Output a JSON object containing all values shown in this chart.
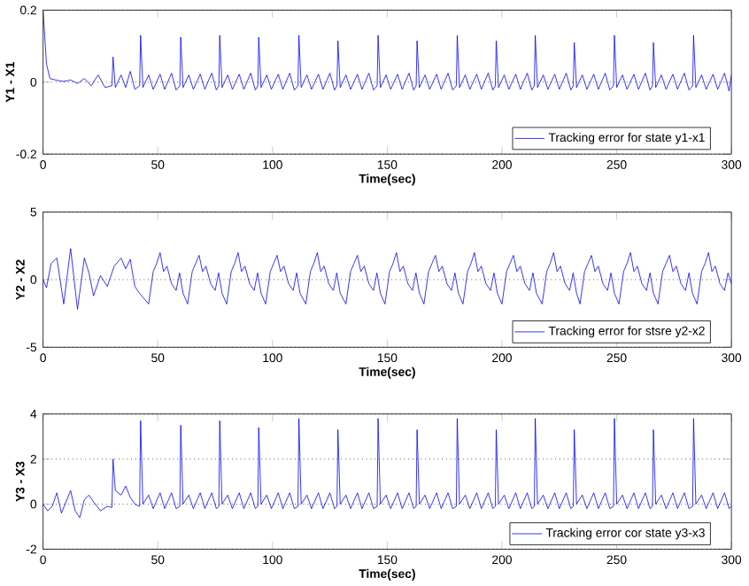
{
  "chart_data": [
    {
      "type": "line",
      "xlabel": "Time(sec)",
      "ylabel": "Y1 - X1",
      "xlim": [
        0,
        300
      ],
      "xticks": [
        0,
        50,
        100,
        150,
        200,
        250,
        300
      ],
      "ylim": [
        -0.2,
        0.2
      ],
      "yticks": [
        -0.2,
        0,
        0.2
      ],
      "grid": "y",
      "legend": "bottom right",
      "x": [
        0,
        0.5,
        1.5,
        3,
        6,
        9,
        12,
        15,
        18,
        21,
        24,
        27,
        30,
        30.5,
        31.5,
        34,
        36,
        38,
        40,
        42.1,
        42.5,
        43.5,
        46,
        48,
        51,
        53,
        56,
        58,
        59.6,
        60,
        61,
        63.5,
        65.5,
        68.5,
        70.5,
        73.5,
        75.5,
        76.6,
        77,
        78,
        80.5,
        82.5,
        85.5,
        87.5,
        90.5,
        92.5,
        93.6,
        94,
        95,
        97.5,
        99.5,
        102.5,
        104.5,
        107.5,
        109.5,
        111.1,
        111.5,
        112.5,
        115,
        117,
        120,
        122,
        125,
        127,
        128.1,
        128.5,
        129.5,
        132,
        134,
        137,
        139,
        142,
        144,
        145.6,
        146,
        147,
        149.5,
        151.5,
        154.5,
        156.5,
        159.5,
        161.5,
        162.6,
        163,
        164,
        166.5,
        168.5,
        171.5,
        173.5,
        176.5,
        178.5,
        180.1,
        180.5,
        181.5,
        184,
        186,
        189,
        191,
        194,
        196,
        197.1,
        197.5,
        198.5,
        201,
        203,
        206,
        208,
        211,
        213,
        214.1,
        214.5,
        215.5,
        218,
        220,
        223,
        225,
        228,
        230,
        231.1,
        231.5,
        232.5,
        235,
        237,
        240,
        242,
        245,
        247,
        248.6,
        249,
        250,
        252.5,
        254.5,
        257.5,
        259.5,
        262.5,
        264.5,
        265.6,
        266,
        267,
        269.5,
        271.5,
        274.5,
        276.5,
        279.5,
        281.5,
        283.1,
        283.5,
        284.5,
        287,
        289,
        292,
        294,
        297,
        299,
        300
      ],
      "series": [
        {
          "name": "Tracking error for state y1-x1",
          "color": "#0000ff",
          "values": [
            0.2,
            0.15,
            0.05,
            0.01,
            0.005,
            0.002,
            0.006,
            -0.004,
            0.01,
            -0.01,
            0.02,
            -0.015,
            -0.01,
            0.07,
            -0.015,
            0.02,
            -0.015,
            0.03,
            -0.02,
            -0.01,
            0.13,
            -0.015,
            0.02,
            -0.02,
            0.022,
            -0.02,
            0.025,
            -0.022,
            -0.01,
            0.125,
            -0.015,
            0.02,
            -0.02,
            0.022,
            -0.02,
            0.025,
            -0.022,
            -0.01,
            0.13,
            -0.015,
            0.02,
            -0.02,
            0.022,
            -0.02,
            0.025,
            -0.022,
            -0.01,
            0.125,
            -0.015,
            0.02,
            -0.02,
            0.022,
            -0.02,
            0.025,
            -0.022,
            -0.01,
            0.13,
            -0.015,
            0.02,
            -0.02,
            0.022,
            -0.02,
            0.025,
            -0.022,
            -0.01,
            0.115,
            -0.015,
            0.02,
            -0.02,
            0.022,
            -0.02,
            0.025,
            -0.022,
            -0.01,
            0.13,
            -0.015,
            0.02,
            -0.02,
            0.022,
            -0.02,
            0.025,
            -0.022,
            -0.01,
            0.115,
            -0.015,
            0.02,
            -0.02,
            0.022,
            -0.02,
            0.025,
            -0.022,
            -0.01,
            0.13,
            -0.015,
            0.02,
            -0.02,
            0.022,
            -0.02,
            0.025,
            -0.022,
            -0.01,
            0.115,
            -0.015,
            0.02,
            -0.02,
            0.022,
            -0.02,
            0.025,
            -0.022,
            -0.01,
            0.13,
            -0.015,
            0.02,
            -0.02,
            0.022,
            -0.02,
            0.025,
            -0.022,
            -0.01,
            0.11,
            -0.015,
            0.02,
            -0.02,
            0.022,
            -0.02,
            0.025,
            -0.022,
            -0.01,
            0.13,
            -0.015,
            0.02,
            -0.02,
            0.022,
            -0.02,
            0.025,
            -0.022,
            -0.01,
            0.11,
            -0.015,
            0.02,
            -0.02,
            0.022,
            -0.02,
            0.025,
            -0.022,
            -0.01,
            0.13,
            -0.015,
            0.02,
            -0.02,
            0.022,
            -0.02,
            0.025,
            -0.025,
            0.02
          ]
        }
      ]
    },
    {
      "type": "line",
      "xlabel": "Time(sec)",
      "ylabel": "Y2 - X2",
      "xlim": [
        0,
        300
      ],
      "xticks": [
        0,
        50,
        100,
        150,
        200,
        250,
        300
      ],
      "ylim": [
        -5,
        5
      ],
      "yticks": [
        -5,
        0,
        5
      ],
      "grid": "y",
      "legend": "bottom right",
      "x": [
        0,
        1.5,
        3.5,
        6,
        9,
        12,
        15,
        18,
        20,
        22,
        25,
        28,
        31,
        34,
        36,
        38,
        40,
        42,
        46,
        48,
        49.5,
        51,
        52.5,
        54,
        56,
        58,
        59.5,
        61,
        63,
        65,
        66.5,
        68,
        69.5,
        71,
        73,
        75,
        76.5,
        78,
        80,
        82,
        83.5,
        85,
        86.5,
        88,
        90,
        92,
        93.5,
        95,
        97,
        99,
        100.5,
        102,
        103.5,
        105,
        107,
        109,
        110.5,
        112,
        114.5,
        116.5,
        118,
        119.5,
        121,
        122.5,
        124.5,
        126.5,
        128,
        129.5,
        132,
        134,
        135.5,
        137,
        138.5,
        140,
        142,
        144,
        145.5,
        147,
        149,
        151,
        152.5,
        154,
        155.5,
        157,
        159,
        161,
        162.5,
        164,
        166,
        168,
        169.5,
        171,
        172.5,
        174,
        176,
        178,
        179.5,
        181,
        183,
        185,
        186.5,
        188,
        189.5,
        191,
        193,
        195,
        196.5,
        198,
        200,
        202,
        203.5,
        205,
        206.5,
        208,
        210,
        212,
        213.5,
        215,
        217.5,
        219.5,
        221,
        222.5,
        224,
        225.5,
        227.5,
        229.5,
        231,
        232.5,
        234,
        236,
        237.5,
        239,
        240.5,
        242,
        244,
        246,
        247.5,
        249,
        251,
        253,
        254.5,
        256,
        257.5,
        259,
        261,
        263,
        264.5,
        266,
        268,
        270,
        271.5,
        273,
        274.5,
        276,
        278,
        280,
        281.5,
        283,
        285,
        287,
        288.5,
        290,
        291.5,
        293,
        295,
        297,
        298.5,
        300
      ],
      "series": [
        {
          "name": "Tracking error for stsre y2-x2",
          "color": "#0000ff",
          "values": [
            0,
            -0.6,
            1.2,
            1.6,
            -1.8,
            2.3,
            -2.2,
            1.6,
            0.5,
            -1.2,
            0.3,
            -0.5,
            1.0,
            1.6,
            0.8,
            1.5,
            -0.5,
            -1.0,
            -1.8,
            0.6,
            1.2,
            2.0,
            0.6,
            1.0,
            -0.3,
            -0.8,
            0.5,
            -1.0,
            -1.8,
            0.6,
            1.2,
            1.8,
            0.6,
            1.0,
            -0.3,
            -0.8,
            0.5,
            -1.0,
            -1.8,
            0.6,
            1.2,
            2.0,
            0.6,
            1.0,
            -0.3,
            -0.8,
            0.5,
            -1.0,
            -1.8,
            0.6,
            1.2,
            1.8,
            0.6,
            1.0,
            -0.3,
            -0.8,
            0.5,
            -1.0,
            -1.8,
            0.6,
            1.2,
            2.0,
            0.6,
            1.0,
            -0.3,
            -0.8,
            0.5,
            -1.0,
            -1.8,
            0.6,
            1.2,
            1.8,
            0.6,
            1.0,
            -0.3,
            -0.8,
            0.5,
            -1.0,
            -1.8,
            0.6,
            1.2,
            2.0,
            0.6,
            1.0,
            -0.3,
            -0.8,
            0.5,
            -1.0,
            -1.8,
            0.6,
            1.2,
            1.8,
            0.6,
            1.0,
            -0.3,
            -0.8,
            0.5,
            -1.0,
            -1.8,
            0.6,
            1.2,
            2.0,
            0.6,
            1.0,
            -0.3,
            -0.8,
            0.5,
            -1.0,
            -1.8,
            0.6,
            1.2,
            1.8,
            0.6,
            1.0,
            -0.3,
            -0.8,
            0.5,
            -1.0,
            -1.8,
            0.6,
            1.2,
            2.0,
            0.6,
            1.0,
            -0.3,
            -0.8,
            0.5,
            -1.0,
            -1.8,
            0.6,
            1.2,
            1.8,
            0.6,
            1.0,
            -0.3,
            -0.8,
            0.5,
            -1.0,
            -1.8,
            0.6,
            1.2,
            2.0,
            0.6,
            1.0,
            -0.3,
            -0.8,
            0.5,
            -1.0,
            -1.8,
            0.6,
            1.2,
            1.8,
            0.6,
            1.0,
            -0.3,
            -0.8,
            0.5,
            -1.0,
            -1.8,
            0.6,
            1.2,
            2.0,
            0.6,
            1.0,
            -0.3,
            -0.8,
            0.5,
            -0.3
          ]
        }
      ]
    },
    {
      "type": "line",
      "xlabel": "Time(sec)",
      "ylabel": "Y3 - X3",
      "xlim": [
        0,
        300
      ],
      "xticks": [
        0,
        50,
        100,
        150,
        200,
        250,
        300
      ],
      "ylim": [
        -2,
        4
      ],
      "yticks": [
        -2,
        0,
        2,
        4
      ],
      "grid": "y",
      "legend": "bottom right",
      "x": [
        0,
        2,
        4,
        6,
        8,
        10,
        12,
        14,
        16,
        18,
        20,
        22,
        25,
        28,
        30,
        30.5,
        31.5,
        34,
        36,
        38,
        40,
        42.1,
        42.5,
        43.5,
        46,
        48,
        51,
        53,
        56,
        58,
        59.6,
        60,
        61,
        63.5,
        65.5,
        68.5,
        70.5,
        73.5,
        75.5,
        76.6,
        77,
        78,
        80.5,
        82.5,
        85.5,
        87.5,
        90.5,
        92.5,
        93.6,
        94,
        95,
        97.5,
        99.5,
        102.5,
        104.5,
        107.5,
        109.5,
        111.1,
        111.5,
        112.5,
        115,
        117,
        120,
        122,
        125,
        127,
        128.1,
        128.5,
        129.5,
        132,
        134,
        137,
        139,
        142,
        144,
        145.6,
        146,
        147,
        149.5,
        151.5,
        154.5,
        156.5,
        159.5,
        161.5,
        162.6,
        163,
        164,
        166.5,
        168.5,
        171.5,
        173.5,
        176.5,
        178.5,
        180.1,
        180.5,
        181.5,
        184,
        186,
        189,
        191,
        194,
        196,
        197.1,
        197.5,
        198.5,
        201,
        203,
        206,
        208,
        211,
        213,
        214.1,
        214.5,
        215.5,
        218,
        220,
        223,
        225,
        228,
        230,
        231.1,
        231.5,
        232.5,
        235,
        237,
        240,
        242,
        245,
        247,
        248.6,
        249,
        250,
        252.5,
        254.5,
        257.5,
        259.5,
        262.5,
        264.5,
        265.6,
        266,
        267,
        269.5,
        271.5,
        274.5,
        276.5,
        279.5,
        281.5,
        283.1,
        283.5,
        284.5,
        287,
        289,
        292,
        294,
        297,
        299,
        300
      ],
      "series": [
        {
          "name": "Tracking error cor state y3-x3",
          "color": "#0000ff",
          "values": [
            0,
            -0.3,
            -0.1,
            0.5,
            -0.4,
            0.1,
            0.6,
            -0.3,
            -0.6,
            0.2,
            0.4,
            0.1,
            -0.3,
            -0.1,
            -0.15,
            2.0,
            0.6,
            0.4,
            0.8,
            0.3,
            0.0,
            -0.1,
            3.7,
            0.0,
            0.4,
            -0.2,
            0.5,
            -0.2,
            0.5,
            -0.2,
            -0.1,
            3.5,
            0.0,
            0.4,
            -0.2,
            0.5,
            -0.2,
            0.5,
            -0.2,
            -0.1,
            3.7,
            0.0,
            0.4,
            -0.2,
            0.5,
            -0.2,
            0.5,
            -0.2,
            -0.1,
            3.4,
            0.0,
            0.4,
            -0.2,
            0.5,
            -0.2,
            0.5,
            -0.2,
            -0.1,
            3.8,
            0.0,
            0.4,
            -0.2,
            0.5,
            -0.2,
            0.5,
            -0.2,
            -0.1,
            3.3,
            0.0,
            0.4,
            -0.2,
            0.5,
            -0.2,
            0.5,
            -0.2,
            -0.1,
            3.8,
            0.0,
            0.4,
            -0.2,
            0.5,
            -0.2,
            0.5,
            -0.2,
            -0.1,
            3.3,
            0.0,
            0.4,
            -0.2,
            0.5,
            -0.2,
            0.5,
            -0.2,
            -0.1,
            3.8,
            0.0,
            0.4,
            -0.2,
            0.5,
            -0.2,
            0.5,
            -0.2,
            -0.1,
            3.3,
            0.0,
            0.4,
            -0.2,
            0.5,
            -0.2,
            0.5,
            -0.2,
            -0.1,
            3.8,
            0.0,
            0.4,
            -0.2,
            0.5,
            -0.2,
            0.5,
            -0.2,
            -0.1,
            3.3,
            0.0,
            0.4,
            -0.2,
            0.5,
            -0.2,
            0.5,
            -0.2,
            -0.1,
            3.8,
            0.0,
            0.4,
            -0.2,
            0.5,
            -0.2,
            0.5,
            -0.2,
            -0.1,
            3.3,
            0.0,
            0.4,
            -0.2,
            0.5,
            -0.2,
            0.5,
            -0.2,
            -0.1,
            3.8,
            0.0,
            0.4,
            -0.2,
            0.5,
            -0.2,
            0.5,
            -0.2,
            -0.1
          ]
        }
      ]
    }
  ]
}
